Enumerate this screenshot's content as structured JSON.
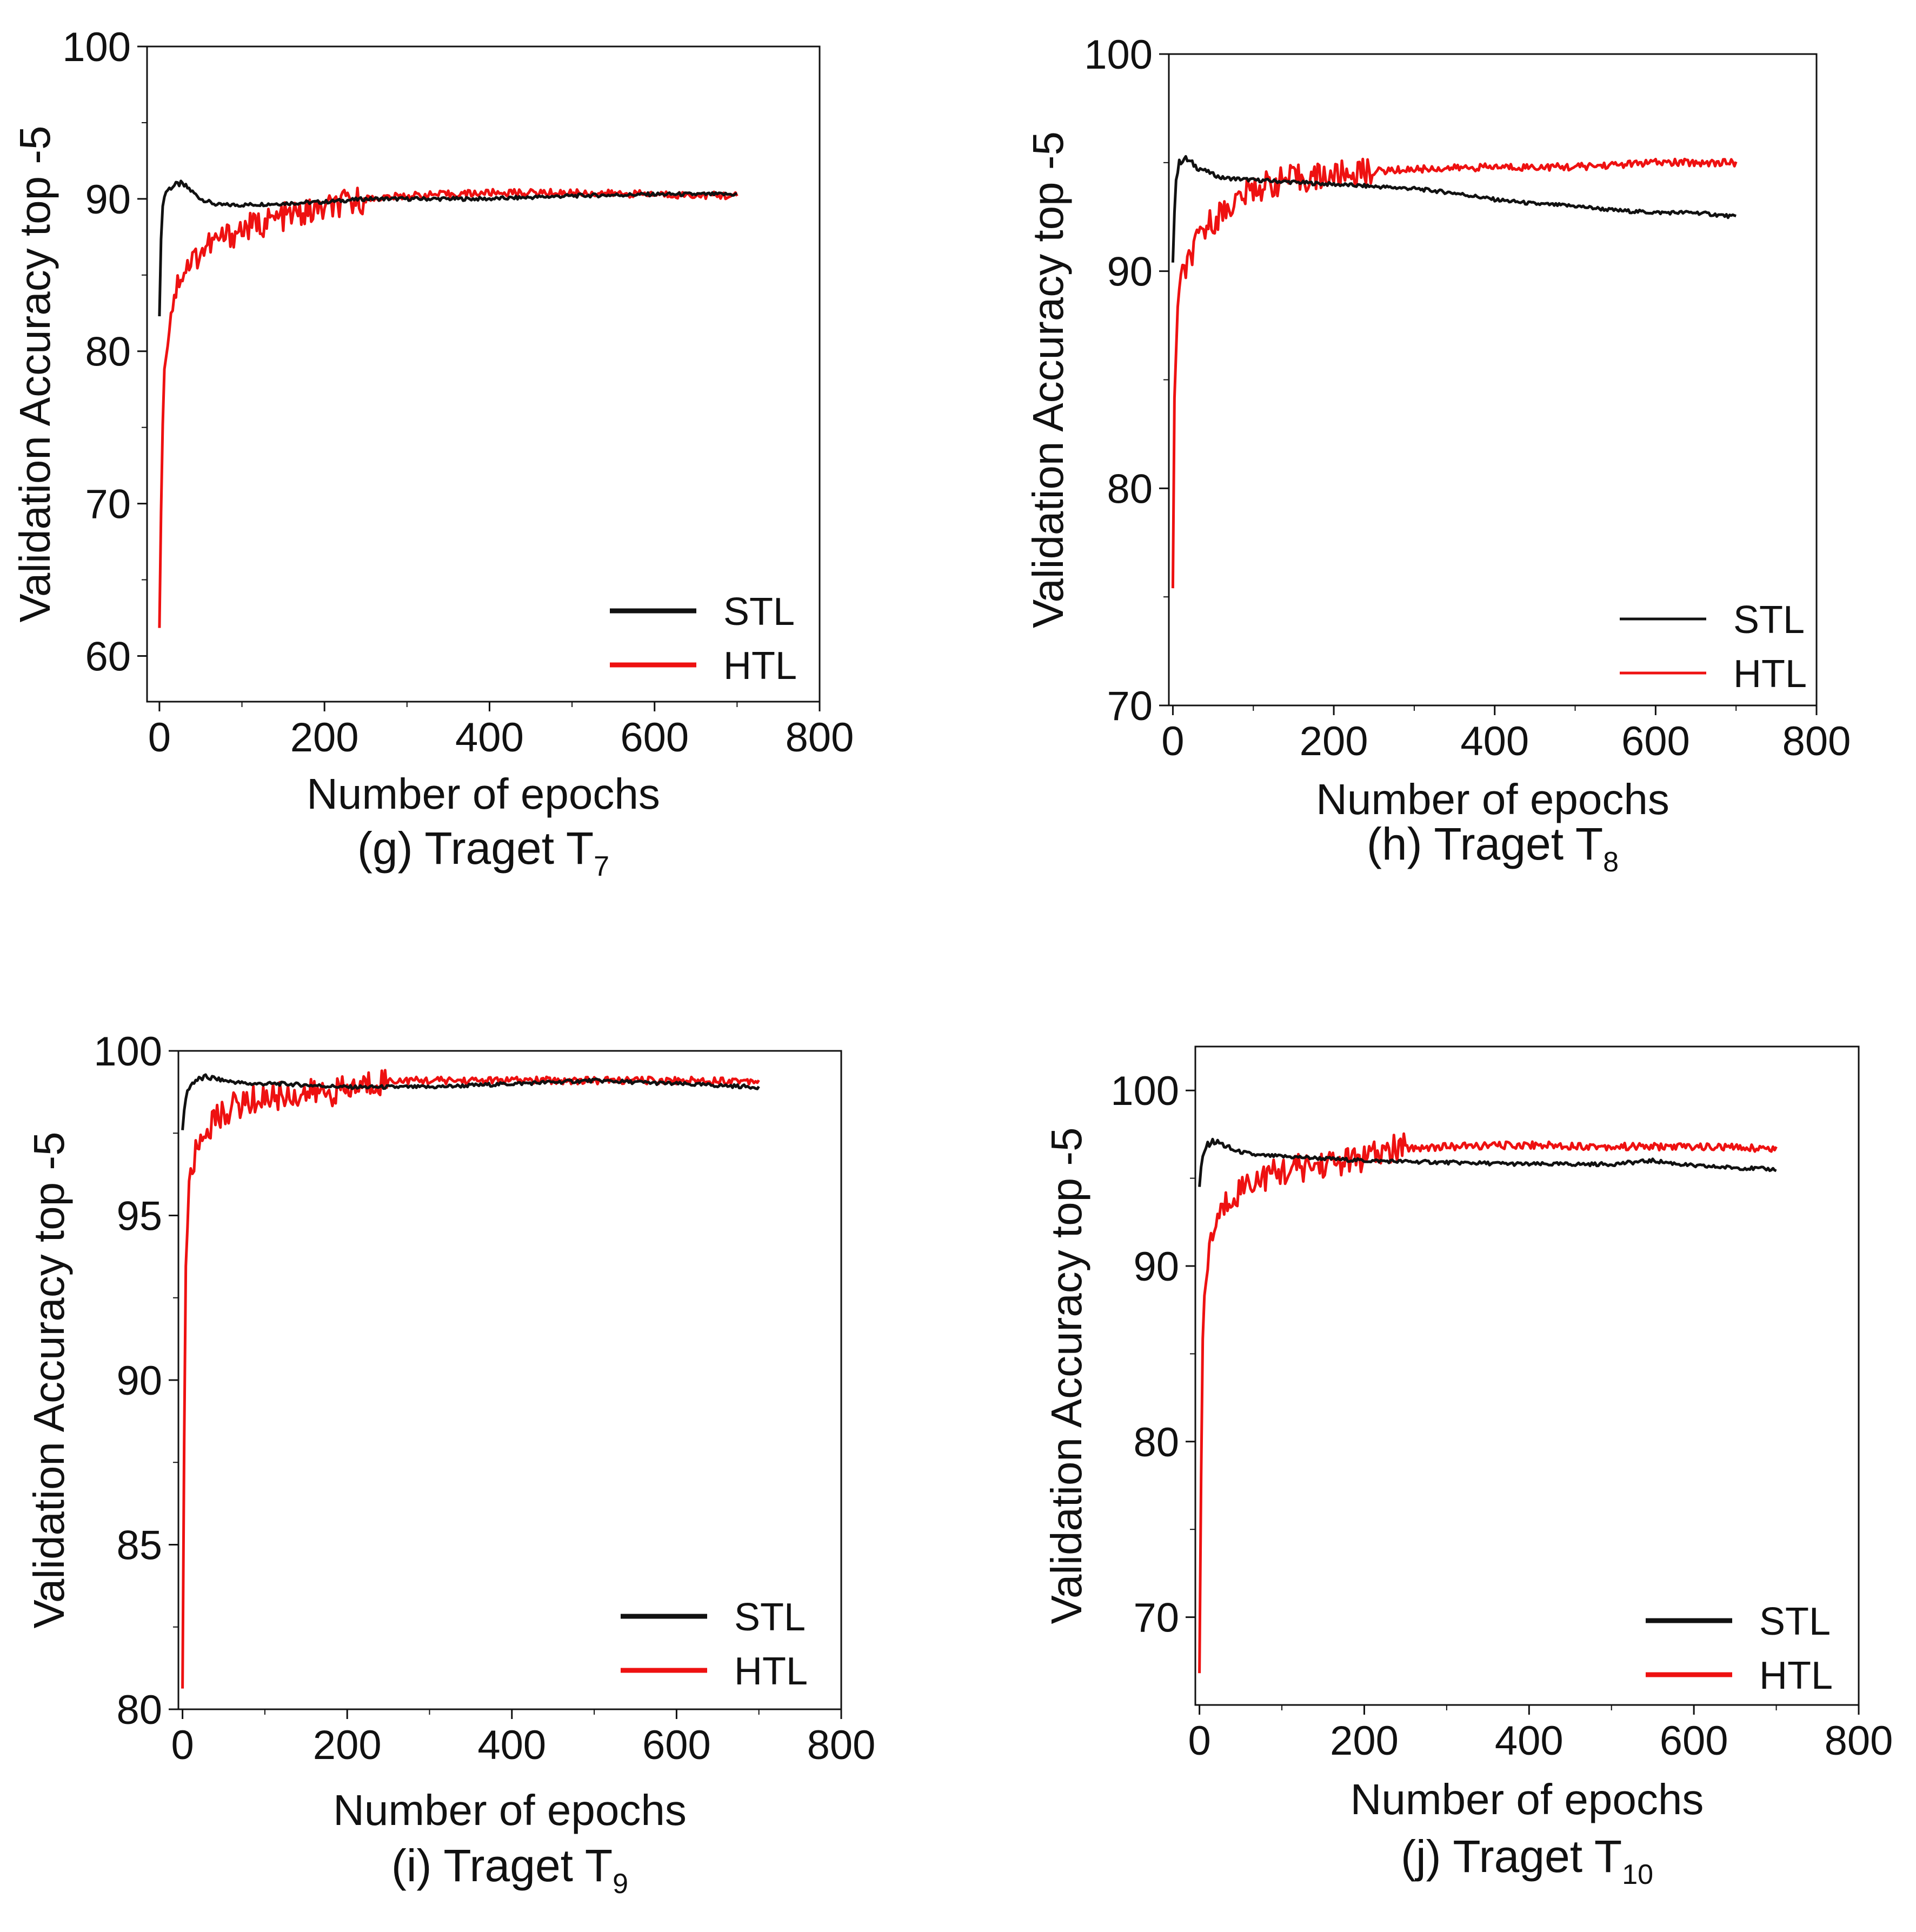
{
  "chart_data": [
    {
      "type": "line",
      "panel": "g",
      "caption": {
        "main": "(g) Traget T",
        "sub": "7"
      },
      "xlabel": "Number  of epochs",
      "ylabel": "Validation  Accuracy top -5",
      "xlim": [
        -15,
        800
      ],
      "ylim": [
        57,
        100
      ],
      "xticks": [
        "0",
        "200",
        "400",
        "600",
        "800"
      ],
      "xtick_values": [
        0,
        200,
        400,
        600,
        800
      ],
      "yticks": [
        "60",
        "70",
        "80",
        "90",
        "100"
      ],
      "ytick_values": [
        60,
        70,
        80,
        90,
        100
      ],
      "legend": [
        "STL",
        "HTL"
      ],
      "colors": {
        "STL": "#111111",
        "HTL": "#ee1111"
      },
      "series": [
        {
          "name": "STL",
          "x": [
            0,
            3,
            8,
            15,
            25,
            35,
            50,
            70,
            100,
            150,
            200,
            250,
            300,
            400,
            500,
            600,
            700
          ],
          "values": [
            82.5,
            89.5,
            90.5,
            90.8,
            91.0,
            90.7,
            90.0,
            89.6,
            89.6,
            89.7,
            89.8,
            90.0,
            90.0,
            90.0,
            90.2,
            90.3,
            90.3
          ]
        },
        {
          "name": "HTL",
          "x": [
            0,
            2,
            4,
            7,
            10,
            15,
            25,
            40,
            60,
            100,
            150,
            200,
            250,
            300,
            400,
            500,
            600,
            700
          ],
          "values": [
            61,
            70,
            76,
            79.5,
            81,
            83,
            85,
            86,
            87,
            88,
            88.8,
            89.3,
            90.0,
            90.2,
            90.4,
            90.4,
            90.3,
            90.2
          ]
        }
      ]
    },
    {
      "type": "line",
      "panel": "h",
      "caption": {
        "main": "(h) Traget T",
        "sub": "8"
      },
      "xlabel": "Number  of epochs",
      "ylabel": "Validation  Accuracy top -5",
      "xlim": [
        -5,
        800
      ],
      "ylim": [
        70,
        100
      ],
      "xticks": [
        "0",
        "200",
        "400",
        "600",
        "800"
      ],
      "xtick_values": [
        0,
        200,
        400,
        600,
        800
      ],
      "yticks": [
        "70",
        "80",
        "90",
        "100"
      ],
      "ytick_values": [
        70,
        80,
        90,
        100
      ],
      "legend": [
        "STL",
        "HTL"
      ],
      "colors": {
        "STL": "#111111",
        "HTL": "#ee1111"
      },
      "series": [
        {
          "name": "STL",
          "x": [
            0,
            3,
            8,
            15,
            30,
            60,
            100,
            150,
            200,
            250,
            300,
            350,
            400,
            450,
            500,
            550,
            600,
            650,
            700
          ],
          "values": [
            90.5,
            94,
            95,
            95.2,
            94.8,
            94.3,
            94.2,
            94.1,
            94.0,
            93.9,
            93.8,
            93.6,
            93.3,
            93.1,
            93.0,
            92.8,
            92.7,
            92.7,
            92.5
          ]
        },
        {
          "name": "HTL",
          "x": [
            0,
            2,
            5,
            10,
            20,
            40,
            70,
            100,
            140,
            200,
            250,
            300,
            400,
            500,
            600,
            700
          ],
          "values": [
            75,
            84,
            88,
            89.5,
            90.5,
            92,
            93,
            93.8,
            94.2,
            94.4,
            94.6,
            94.7,
            94.8,
            94.8,
            95.0,
            95.0
          ]
        }
      ]
    },
    {
      "type": "line",
      "panel": "i",
      "caption": {
        "main": "(i) Traget T",
        "sub": "9"
      },
      "xlabel": "Number  of epochs",
      "ylabel": "Validation  Accuracy top -5",
      "xlim": [
        -5,
        800
      ],
      "ylim": [
        80,
        100
      ],
      "xticks": [
        "0",
        "200",
        "400",
        "600",
        "800"
      ],
      "xtick_values": [
        0,
        200,
        400,
        600,
        800
      ],
      "yticks": [
        "80",
        "85",
        "90",
        "95",
        "100"
      ],
      "ytick_values": [
        80,
        85,
        90,
        95,
        100
      ],
      "legend": [
        "STL",
        "HTL"
      ],
      "colors": {
        "STL": "#111111",
        "HTL": "#ee1111"
      },
      "series": [
        {
          "name": "STL",
          "x": [
            0,
            3,
            8,
            15,
            30,
            50,
            80,
            120,
            200,
            300,
            400,
            500,
            600,
            700
          ],
          "values": [
            97.5,
            98.5,
            98.9,
            99.1,
            99.2,
            99.1,
            99.0,
            99.0,
            98.9,
            98.9,
            99.0,
            99.1,
            99.0,
            98.9
          ]
        },
        {
          "name": "HTL",
          "x": [
            0,
            2,
            4,
            7,
            12,
            20,
            35,
            60,
            100,
            150,
            200,
            240,
            300,
            400,
            500,
            600,
            700
          ],
          "values": [
            80.8,
            88,
            93.5,
            95.5,
            96.5,
            97.2,
            97.8,
            98.3,
            98.6,
            98.7,
            98.8,
            99.1,
            99.1,
            99.1,
            99.1,
            99.1,
            99.1
          ]
        }
      ]
    },
    {
      "type": "line",
      "panel": "j",
      "caption": {
        "main": "(j) Traget T",
        "sub": "10"
      },
      "xlabel": "Number  of epochs",
      "ylabel": "Validation  Accuracy top -5",
      "xlim": [
        -5,
        800
      ],
      "ylim": [
        65,
        102.5
      ],
      "xticks": [
        "0",
        "200",
        "400",
        "600",
        "800"
      ],
      "xtick_values": [
        0,
        200,
        400,
        600,
        800
      ],
      "yticks": [
        "70",
        "80",
        "90",
        "100"
      ],
      "ytick_values": [
        70,
        80,
        90,
        100
      ],
      "legend": [
        "STL",
        "HTL"
      ],
      "colors": {
        "STL": "#111111",
        "HTL": "#ee1111"
      },
      "series": [
        {
          "name": "STL",
          "x": [
            0,
            3,
            8,
            15,
            25,
            40,
            70,
            120,
            200,
            300,
            400,
            500,
            550,
            600,
            700
          ],
          "values": [
            94.5,
            96,
            96.8,
            97.1,
            97.0,
            96.6,
            96.3,
            96.2,
            96.0,
            95.9,
            95.8,
            95.8,
            96.0,
            95.7,
            95.5
          ]
        },
        {
          "name": "HTL",
          "x": [
            0,
            2,
            4,
            7,
            12,
            20,
            35,
            60,
            100,
            150,
            200,
            240,
            300,
            400,
            500,
            600,
            700
          ],
          "values": [
            66,
            78,
            86,
            89,
            91,
            92.5,
            93.8,
            94.8,
            95.4,
            95.8,
            96.1,
            96.7,
            96.8,
            96.9,
            96.8,
            96.8,
            96.7
          ]
        }
      ]
    }
  ]
}
